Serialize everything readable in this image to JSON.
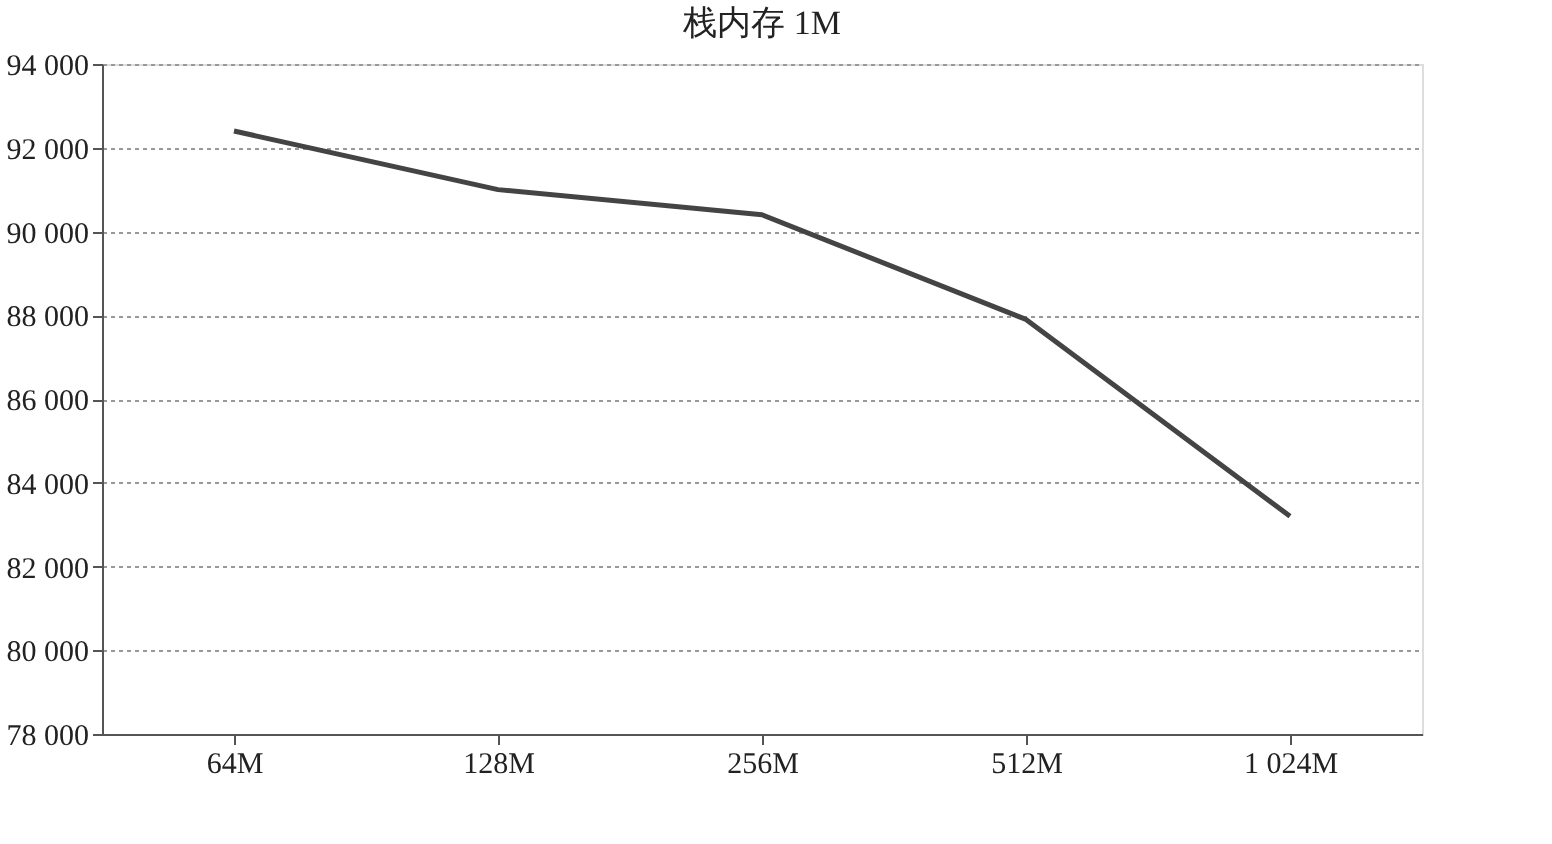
{
  "chart_data": {
    "type": "line",
    "title": "栈内存 1M",
    "categories": [
      "64M",
      "128M",
      "256M",
      "512M",
      "1 024M"
    ],
    "series": [
      {
        "color": "#444444",
        "values": [
          92400,
          91000,
          90400,
          87900,
          83200
        ]
      }
    ],
    "ylim": [
      78000,
      94000
    ],
    "yticks": [
      {
        "value": 78000,
        "label": "78 000"
      },
      {
        "value": 80000,
        "label": "80 000"
      },
      {
        "value": 82000,
        "label": "82 000"
      },
      {
        "value": 84000,
        "label": "84 000"
      },
      {
        "value": 86000,
        "label": "86 000"
      },
      {
        "value": 88000,
        "label": "88 000"
      },
      {
        "value": 90000,
        "label": "90 000"
      },
      {
        "value": 92000,
        "label": "92 000"
      },
      {
        "value": 94000,
        "label": "94 000"
      }
    ],
    "grid": "y",
    "marker": "none",
    "line_style": "solid"
  }
}
